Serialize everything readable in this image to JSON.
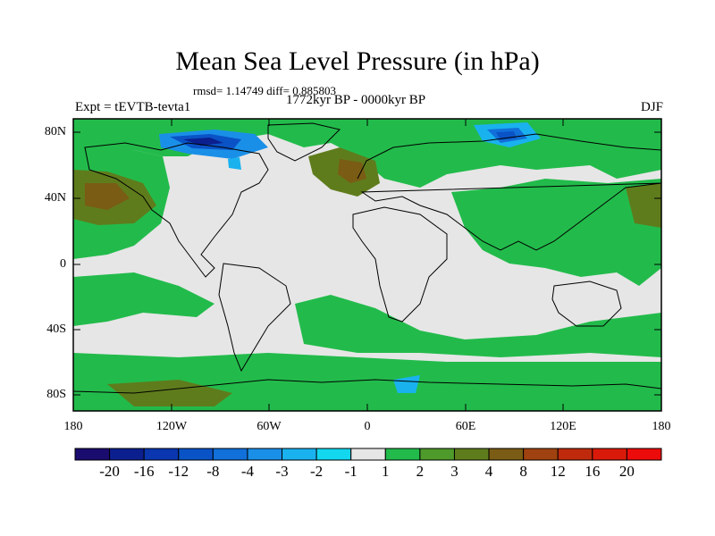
{
  "title": "Mean Sea Level Pressure (in hPa)",
  "stats": "rmsd= 1.14749 diff= 0.885803",
  "expt": "Expt = tEVTB-tevta1",
  "period": "1772kyr BP - 0000kyr BP",
  "season": "DJF",
  "lat_labels": [
    "80N",
    "40N",
    "0",
    "40S",
    "80S"
  ],
  "lon_labels": [
    "180",
    "120W",
    "60W",
    "0",
    "60E",
    "120E",
    "180"
  ],
  "colorbar": {
    "colors": [
      "#1a0b6e",
      "#0b1f8f",
      "#0a37b0",
      "#0a53c6",
      "#1170d9",
      "#1a8fe8",
      "#19b2ef",
      "#12d7ee",
      "#e6e6e6",
      "#22bb4b",
      "#4e9a2a",
      "#5f7c1c",
      "#7a5c14",
      "#a0420f",
      "#c02a0c",
      "#d91a0a",
      "#ec0b0b"
    ],
    "labels": [
      "-20",
      "-16",
      "-12",
      "-8",
      "-4",
      "-3",
      "-2",
      "-1",
      "1",
      "2",
      "3",
      "4",
      "8",
      "12",
      "16",
      "20"
    ]
  }
}
